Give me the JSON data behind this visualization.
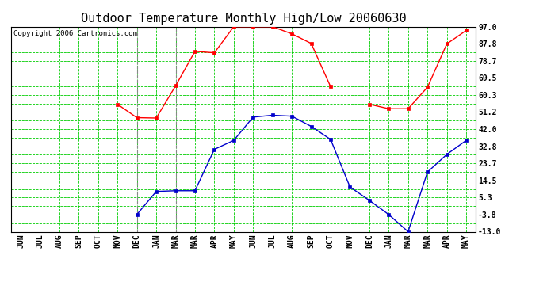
{
  "title": "Outdoor Temperature Monthly High/Low 20060630",
  "copyright": "Copyright 2006 Cartronics.com",
  "x_labels": [
    "JUN",
    "JUL",
    "AUG",
    "SEP",
    "OCT",
    "NOV",
    "DEC",
    "JAN",
    "MAR",
    "MAR",
    "APR",
    "MAY",
    "JUN",
    "JUL",
    "AUG",
    "SEP",
    "OCT",
    "NOV",
    "DEC",
    "JAN",
    "MAR",
    "MAR",
    "APR",
    "MAY"
  ],
  "high_temps": [
    null,
    null,
    null,
    null,
    null,
    55.4,
    48.2,
    48.0,
    65.3,
    83.8,
    83.0,
    97.0,
    97.0,
    97.0,
    93.2,
    88.0,
    64.8,
    null,
    55.4,
    53.0,
    53.0,
    64.5,
    87.8,
    95.0
  ],
  "low_temps": [
    null,
    null,
    null,
    null,
    null,
    null,
    -3.8,
    8.6,
    9.0,
    9.0,
    31.2,
    36.0,
    48.5,
    49.5,
    49.0,
    43.5,
    36.5,
    11.0,
    3.8,
    -3.8,
    -13.0,
    19.0,
    28.5,
    36.0
  ],
  "yticks": [
    97.0,
    87.8,
    78.7,
    69.5,
    60.3,
    51.2,
    42.0,
    32.8,
    23.7,
    14.5,
    5.3,
    -3.8,
    -13.0
  ],
  "ymin": -13.0,
  "ymax": 97.0,
  "bg_color": "#ffffff",
  "plot_bg_color": "#ffffff",
  "line_color_high": "#ff0000",
  "line_color_low": "#0000cc",
  "title_fontsize": 11,
  "copyright_fontsize": 6.5,
  "tick_fontsize": 7,
  "gray_vlines": [
    6,
    8
  ]
}
